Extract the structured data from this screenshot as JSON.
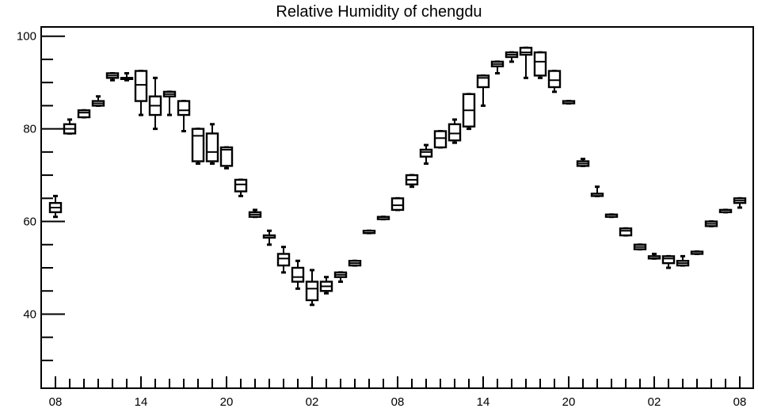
{
  "chart_data": {
    "type": "box",
    "title": "Relative Humidity of chengdu",
    "xlabel": "",
    "ylabel": "",
    "ylim": [
      24,
      102
    ],
    "yticks": [
      40,
      60,
      80,
      100
    ],
    "xtick_labels": [
      "08",
      "14",
      "20",
      "02",
      "08",
      "14",
      "20",
      "02",
      "08"
    ],
    "xlim": [
      0,
      48
    ],
    "grid": false,
    "colors": {
      "box": "#000000",
      "background": "#ffffff"
    },
    "boxes": [
      {
        "x": 0,
        "low": 61.0,
        "q1": 62.0,
        "median": 63.0,
        "q3": 64.0,
        "high": 65.5
      },
      {
        "x": 1,
        "low": 79.0,
        "q1": 79.0,
        "median": 80.0,
        "q3": 81.0,
        "high": 82.0
      },
      {
        "x": 2,
        "low": 82.5,
        "q1": 82.5,
        "median": 83.5,
        "q3": 84.0,
        "high": 84.0
      },
      {
        "x": 3,
        "low": 85.0,
        "q1": 85.0,
        "median": 85.5,
        "q3": 86.0,
        "high": 87.0
      },
      {
        "x": 4,
        "low": 90.5,
        "q1": 91.0,
        "median": 91.5,
        "q3": 92.0,
        "high": 92.0
      },
      {
        "x": 5,
        "low": 90.5,
        "q1": 91.0,
        "median": 91.0,
        "q3": 91.0,
        "high": 92.0
      },
      {
        "x": 6,
        "low": 83.0,
        "q1": 86.0,
        "median": 89.5,
        "q3": 92.5,
        "high": 92.5
      },
      {
        "x": 7,
        "low": 80.0,
        "q1": 83.0,
        "median": 85.0,
        "q3": 87.0,
        "high": 91.0
      },
      {
        "x": 8,
        "low": 83.0,
        "q1": 87.0,
        "median": 87.5,
        "q3": 88.0,
        "high": 88.0
      },
      {
        "x": 9,
        "low": 79.5,
        "q1": 83.0,
        "median": 84.0,
        "q3": 86.0,
        "high": 86.0
      },
      {
        "x": 10,
        "low": 72.5,
        "q1": 73.0,
        "median": 78.5,
        "q3": 80.0,
        "high": 80.0
      },
      {
        "x": 11,
        "low": 72.5,
        "q1": 73.0,
        "median": 75.0,
        "q3": 79.0,
        "high": 81.0
      },
      {
        "x": 12,
        "low": 71.5,
        "q1": 72.0,
        "median": 75.5,
        "q3": 76.0,
        "high": 76.0
      },
      {
        "x": 13,
        "low": 65.5,
        "q1": 66.5,
        "median": 68.0,
        "q3": 69.0,
        "high": 69.0
      },
      {
        "x": 14,
        "low": 61.0,
        "q1": 61.0,
        "median": 61.5,
        "q3": 62.0,
        "high": 62.5
      },
      {
        "x": 15,
        "low": 55.0,
        "q1": 56.5,
        "median": 57.0,
        "q3": 57.0,
        "high": 58.0
      },
      {
        "x": 16,
        "low": 49.0,
        "q1": 50.5,
        "median": 52.0,
        "q3": 53.0,
        "high": 54.5
      },
      {
        "x": 17,
        "low": 45.5,
        "q1": 47.0,
        "median": 48.0,
        "q3": 50.0,
        "high": 51.5
      },
      {
        "x": 18,
        "low": 42.0,
        "q1": 43.0,
        "median": 45.5,
        "q3": 47.0,
        "high": 49.5
      },
      {
        "x": 19,
        "low": 44.5,
        "q1": 45.0,
        "median": 46.0,
        "q3": 47.0,
        "high": 48.0
      },
      {
        "x": 20,
        "low": 47.0,
        "q1": 48.0,
        "median": 48.5,
        "q3": 49.0,
        "high": 49.0
      },
      {
        "x": 21,
        "low": 50.5,
        "q1": 50.5,
        "median": 51.0,
        "q3": 51.5,
        "high": 51.5
      },
      {
        "x": 22,
        "low": 57.5,
        "q1": 57.5,
        "median": 57.5,
        "q3": 58.0,
        "high": 58.0
      },
      {
        "x": 23,
        "low": 60.5,
        "q1": 60.5,
        "median": 61.0,
        "q3": 61.0,
        "high": 61.0
      },
      {
        "x": 24,
        "low": 62.5,
        "q1": 62.5,
        "median": 63.5,
        "q3": 65.0,
        "high": 65.0
      },
      {
        "x": 25,
        "low": 67.5,
        "q1": 68.0,
        "median": 69.0,
        "q3": 70.0,
        "high": 70.0
      },
      {
        "x": 26,
        "low": 72.5,
        "q1": 74.0,
        "median": 75.0,
        "q3": 75.5,
        "high": 76.5
      },
      {
        "x": 27,
        "low": 76.0,
        "q1": 76.0,
        "median": 78.0,
        "q3": 79.5,
        "high": 79.5
      },
      {
        "x": 28,
        "low": 77.0,
        "q1": 77.5,
        "median": 79.0,
        "q3": 81.0,
        "high": 82.0
      },
      {
        "x": 29,
        "low": 80.0,
        "q1": 80.5,
        "median": 84.0,
        "q3": 87.5,
        "high": 87.5
      },
      {
        "x": 30,
        "low": 85.0,
        "q1": 89.0,
        "median": 91.0,
        "q3": 91.5,
        "high": 91.5
      },
      {
        "x": 31,
        "low": 92.0,
        "q1": 93.5,
        "median": 94.0,
        "q3": 94.5,
        "high": 94.5
      },
      {
        "x": 32,
        "low": 94.5,
        "q1": 95.5,
        "median": 96.0,
        "q3": 96.5,
        "high": 96.5
      },
      {
        "x": 33,
        "low": 91.0,
        "q1": 96.0,
        "median": 96.5,
        "q3": 97.5,
        "high": 97.5
      },
      {
        "x": 34,
        "low": 91.0,
        "q1": 91.5,
        "median": 94.5,
        "q3": 96.5,
        "high": 96.5
      },
      {
        "x": 35,
        "low": 88.0,
        "q1": 89.0,
        "median": 90.5,
        "q3": 92.5,
        "high": 92.5
      },
      {
        "x": 36,
        "low": 85.5,
        "q1": 85.5,
        "median": 86.0,
        "q3": 86.0,
        "high": 86.0
      },
      {
        "x": 37,
        "low": 72.0,
        "q1": 72.0,
        "median": 72.5,
        "q3": 73.0,
        "high": 73.5
      },
      {
        "x": 38,
        "low": 65.5,
        "q1": 65.5,
        "median": 66.0,
        "q3": 66.0,
        "high": 67.5
      },
      {
        "x": 39,
        "low": 61.0,
        "q1": 61.0,
        "median": 61.5,
        "q3": 61.5,
        "high": 61.5
      },
      {
        "x": 40,
        "low": 57.0,
        "q1": 57.0,
        "median": 58.0,
        "q3": 58.5,
        "high": 58.5
      },
      {
        "x": 41,
        "low": 54.0,
        "q1": 54.0,
        "median": 54.5,
        "q3": 55.0,
        "high": 55.0
      },
      {
        "x": 42,
        "low": 52.0,
        "q1": 52.0,
        "median": 52.5,
        "q3": 52.5,
        "high": 53.0
      },
      {
        "x": 43,
        "low": 50.0,
        "q1": 51.0,
        "median": 52.0,
        "q3": 52.5,
        "high": 52.5
      },
      {
        "x": 44,
        "low": 50.5,
        "q1": 50.5,
        "median": 51.0,
        "q3": 51.5,
        "high": 52.5
      },
      {
        "x": 45,
        "low": 53.0,
        "q1": 53.0,
        "median": 53.5,
        "q3": 53.5,
        "high": 53.5
      },
      {
        "x": 46,
        "low": 59.0,
        "q1": 59.0,
        "median": 59.5,
        "q3": 60.0,
        "high": 60.0
      },
      {
        "x": 47,
        "low": 62.0,
        "q1": 62.0,
        "median": 62.5,
        "q3": 62.5,
        "high": 62.5
      },
      {
        "x": 48,
        "low": 63.0,
        "q1": 64.0,
        "median": 64.5,
        "q3": 65.0,
        "high": 65.0
      }
    ]
  }
}
